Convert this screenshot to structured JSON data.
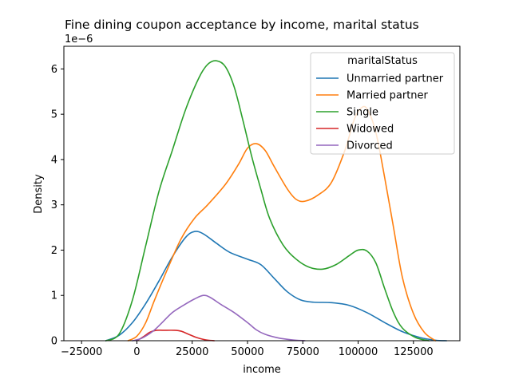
{
  "chart_data": {
    "type": "line",
    "title": "Fine dining coupon acceptance by income, marital status",
    "xlabel": "income",
    "ylabel": "Density",
    "y_offset_text": "1e−6",
    "xlim": [
      -33000,
      146000
    ],
    "ylim": [
      0,
      6.5
    ],
    "y_scale_note": "values in units of 1e-6",
    "xticks": [
      -25000,
      0,
      25000,
      50000,
      75000,
      100000,
      125000
    ],
    "xtick_labels": [
      "−25000",
      "0",
      "25000",
      "50000",
      "75000",
      "100000",
      "125000"
    ],
    "yticks": [
      0,
      1,
      2,
      3,
      4,
      5,
      6
    ],
    "ytick_labels": [
      "0",
      "1",
      "2",
      "3",
      "4",
      "5",
      "6"
    ],
    "grid": false,
    "legend": {
      "title": "maritalStatus",
      "placement": "top-right"
    },
    "series": [
      {
        "name": "Unmarried partner",
        "color": "#1f77b4",
        "points": [
          [
            -14000,
            0.0
          ],
          [
            -8000,
            0.12
          ],
          [
            -2000,
            0.4
          ],
          [
            4000,
            0.82
          ],
          [
            10000,
            1.32
          ],
          [
            16000,
            1.85
          ],
          [
            22000,
            2.28
          ],
          [
            26000,
            2.41
          ],
          [
            30000,
            2.36
          ],
          [
            36000,
            2.15
          ],
          [
            42000,
            1.95
          ],
          [
            50000,
            1.8
          ],
          [
            56000,
            1.68
          ],
          [
            62000,
            1.38
          ],
          [
            68000,
            1.08
          ],
          [
            74000,
            0.9
          ],
          [
            80000,
            0.85
          ],
          [
            88000,
            0.84
          ],
          [
            96000,
            0.78
          ],
          [
            104000,
            0.62
          ],
          [
            112000,
            0.4
          ],
          [
            120000,
            0.2
          ],
          [
            128000,
            0.07
          ],
          [
            135000,
            0.01
          ],
          [
            140000,
            0.0
          ]
        ]
      },
      {
        "name": "Married partner",
        "color": "#ff7f0e",
        "points": [
          [
            -4000,
            0.0
          ],
          [
            0,
            0.1
          ],
          [
            4000,
            0.4
          ],
          [
            8000,
            0.9
          ],
          [
            14000,
            1.6
          ],
          [
            20000,
            2.25
          ],
          [
            26000,
            2.7
          ],
          [
            32000,
            3.0
          ],
          [
            40000,
            3.45
          ],
          [
            46000,
            3.9
          ],
          [
            50000,
            4.25
          ],
          [
            54000,
            4.35
          ],
          [
            58000,
            4.2
          ],
          [
            62000,
            3.85
          ],
          [
            68000,
            3.35
          ],
          [
            72000,
            3.12
          ],
          [
            76000,
            3.08
          ],
          [
            82000,
            3.22
          ],
          [
            88000,
            3.5
          ],
          [
            94000,
            4.2
          ],
          [
            98000,
            4.85
          ],
          [
            101000,
            5.12
          ],
          [
            104000,
            5.12
          ],
          [
            108000,
            4.6
          ],
          [
            112000,
            3.6
          ],
          [
            116000,
            2.5
          ],
          [
            120000,
            1.4
          ],
          [
            125000,
            0.6
          ],
          [
            130000,
            0.18
          ],
          [
            135000,
            0.0
          ]
        ]
      },
      {
        "name": "Single",
        "color": "#2ca02c",
        "points": [
          [
            -14000,
            0.0
          ],
          [
            -8000,
            0.15
          ],
          [
            -2000,
            0.9
          ],
          [
            4000,
            2.1
          ],
          [
            10000,
            3.3
          ],
          [
            16000,
            4.2
          ],
          [
            22000,
            5.1
          ],
          [
            28000,
            5.8
          ],
          [
            32000,
            6.1
          ],
          [
            36000,
            6.18
          ],
          [
            40000,
            6.05
          ],
          [
            44000,
            5.6
          ],
          [
            48000,
            4.85
          ],
          [
            52000,
            4.05
          ],
          [
            56000,
            3.35
          ],
          [
            60000,
            2.7
          ],
          [
            66000,
            2.12
          ],
          [
            72000,
            1.8
          ],
          [
            78000,
            1.62
          ],
          [
            84000,
            1.58
          ],
          [
            90000,
            1.68
          ],
          [
            96000,
            1.88
          ],
          [
            100000,
            2.0
          ],
          [
            104000,
            1.98
          ],
          [
            108000,
            1.72
          ],
          [
            112000,
            1.15
          ],
          [
            116000,
            0.62
          ],
          [
            120000,
            0.28
          ],
          [
            126000,
            0.07
          ],
          [
            132000,
            0.0
          ]
        ]
      },
      {
        "name": "Widowed",
        "color": "#d62728",
        "points": [
          [
            0,
            0.0
          ],
          [
            3000,
            0.09
          ],
          [
            6000,
            0.19
          ],
          [
            9000,
            0.23
          ],
          [
            12000,
            0.23
          ],
          [
            17000,
            0.23
          ],
          [
            20000,
            0.21
          ],
          [
            23000,
            0.15
          ],
          [
            27000,
            0.07
          ],
          [
            31000,
            0.02
          ],
          [
            35000,
            0.0
          ]
        ]
      },
      {
        "name": "Divorced",
        "color": "#9467bd",
        "points": [
          [
            -2000,
            0.0
          ],
          [
            2000,
            0.05
          ],
          [
            7000,
            0.2
          ],
          [
            11000,
            0.38
          ],
          [
            16000,
            0.62
          ],
          [
            21000,
            0.78
          ],
          [
            26000,
            0.92
          ],
          [
            30000,
            1.0
          ],
          [
            33000,
            0.96
          ],
          [
            38000,
            0.8
          ],
          [
            44000,
            0.62
          ],
          [
            50000,
            0.4
          ],
          [
            54000,
            0.24
          ],
          [
            58000,
            0.14
          ],
          [
            64000,
            0.06
          ],
          [
            70000,
            0.02
          ],
          [
            76000,
            0.0
          ]
        ]
      }
    ]
  }
}
